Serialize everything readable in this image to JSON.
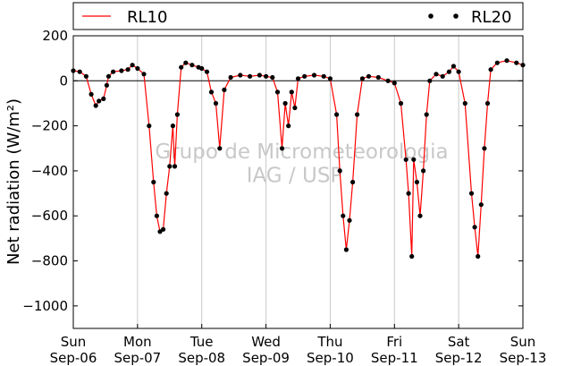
{
  "chart_data": {
    "type": "line",
    "ylabel": "Net radiation (W/m²)",
    "ylim": [
      -1100,
      200
    ],
    "yticks": [
      200,
      0,
      -200,
      -400,
      -600,
      -800,
      -1000
    ],
    "xlim_days": [
      0,
      7
    ],
    "xticks": [
      {
        "day": "Sun",
        "date": "Sep-06"
      },
      {
        "day": "Mon",
        "date": "Sep-07"
      },
      {
        "day": "Tue",
        "date": "Sep-08"
      },
      {
        "day": "Wed",
        "date": "Sep-09"
      },
      {
        "day": "Thu",
        "date": "Sep-10"
      },
      {
        "day": "Fri",
        "date": "Sep-11"
      },
      {
        "day": "Sat",
        "date": "Sep-12"
      },
      {
        "day": "Sun",
        "date": "Sep-13"
      }
    ],
    "grid": "vertical",
    "legend_position": "top",
    "watermark": [
      "Grupo de Micrometeorologia",
      "IAG / USP"
    ],
    "series": [
      {
        "name": "RL10",
        "style": "line",
        "color": "#ff0000",
        "points": [
          [
            0.0,
            45
          ],
          [
            0.1,
            40
          ],
          [
            0.2,
            20
          ],
          [
            0.28,
            -60
          ],
          [
            0.35,
            -110
          ],
          [
            0.4,
            -90
          ],
          [
            0.47,
            -80
          ],
          [
            0.52,
            -20
          ],
          [
            0.55,
            20
          ],
          [
            0.62,
            40
          ],
          [
            0.75,
            45
          ],
          [
            0.85,
            50
          ],
          [
            0.92,
            70
          ],
          [
            1.0,
            55
          ],
          [
            1.1,
            30
          ],
          [
            1.18,
            -200
          ],
          [
            1.25,
            -450
          ],
          [
            1.3,
            -600
          ],
          [
            1.35,
            -670
          ],
          [
            1.4,
            -660
          ],
          [
            1.45,
            -500
          ],
          [
            1.5,
            -380
          ],
          [
            1.55,
            -200
          ],
          [
            1.58,
            -380
          ],
          [
            1.62,
            -150
          ],
          [
            1.68,
            60
          ],
          [
            1.75,
            80
          ],
          [
            1.85,
            70
          ],
          [
            1.95,
            60
          ],
          [
            2.0,
            55
          ],
          [
            2.08,
            40
          ],
          [
            2.15,
            -50
          ],
          [
            2.22,
            -100
          ],
          [
            2.28,
            -300
          ],
          [
            2.35,
            -40
          ],
          [
            2.45,
            15
          ],
          [
            2.6,
            25
          ],
          [
            2.75,
            20
          ],
          [
            2.9,
            25
          ],
          [
            3.0,
            20
          ],
          [
            3.1,
            15
          ],
          [
            3.18,
            -50
          ],
          [
            3.25,
            -300
          ],
          [
            3.3,
            -100
          ],
          [
            3.35,
            -200
          ],
          [
            3.4,
            -50
          ],
          [
            3.45,
            -120
          ],
          [
            3.5,
            10
          ],
          [
            3.6,
            20
          ],
          [
            3.75,
            25
          ],
          [
            3.9,
            20
          ],
          [
            4.0,
            10
          ],
          [
            4.1,
            -150
          ],
          [
            4.15,
            -400
          ],
          [
            4.2,
            -600
          ],
          [
            4.25,
            -750
          ],
          [
            4.3,
            -620
          ],
          [
            4.35,
            -450
          ],
          [
            4.42,
            -150
          ],
          [
            4.5,
            10
          ],
          [
            4.6,
            20
          ],
          [
            4.75,
            15
          ],
          [
            4.9,
            0
          ],
          [
            5.0,
            -10
          ],
          [
            5.1,
            -100
          ],
          [
            5.18,
            -350
          ],
          [
            5.22,
            -500
          ],
          [
            5.27,
            -780
          ],
          [
            5.3,
            -350
          ],
          [
            5.35,
            -450
          ],
          [
            5.4,
            -600
          ],
          [
            5.45,
            -400
          ],
          [
            5.5,
            -150
          ],
          [
            5.55,
            0
          ],
          [
            5.65,
            30
          ],
          [
            5.75,
            20
          ],
          [
            5.85,
            40
          ],
          [
            5.92,
            65
          ],
          [
            6.0,
            40
          ],
          [
            6.1,
            -100
          ],
          [
            6.2,
            -500
          ],
          [
            6.25,
            -650
          ],
          [
            6.3,
            -780
          ],
          [
            6.35,
            -550
          ],
          [
            6.4,
            -300
          ],
          [
            6.45,
            -100
          ],
          [
            6.5,
            50
          ],
          [
            6.6,
            80
          ],
          [
            6.75,
            90
          ],
          [
            6.9,
            80
          ],
          [
            7.0,
            70
          ]
        ]
      },
      {
        "name": "RL20",
        "style": "markers",
        "color": "#000000",
        "points": [
          [
            0.0,
            45
          ],
          [
            0.1,
            40
          ],
          [
            0.2,
            20
          ],
          [
            0.28,
            -60
          ],
          [
            0.35,
            -110
          ],
          [
            0.4,
            -90
          ],
          [
            0.47,
            -80
          ],
          [
            0.52,
            -20
          ],
          [
            0.55,
            20
          ],
          [
            0.62,
            40
          ],
          [
            0.75,
            45
          ],
          [
            0.85,
            50
          ],
          [
            0.92,
            70
          ],
          [
            1.0,
            55
          ],
          [
            1.1,
            30
          ],
          [
            1.18,
            -200
          ],
          [
            1.25,
            -450
          ],
          [
            1.3,
            -600
          ],
          [
            1.35,
            -670
          ],
          [
            1.4,
            -660
          ],
          [
            1.45,
            -500
          ],
          [
            1.5,
            -380
          ],
          [
            1.55,
            -200
          ],
          [
            1.58,
            -380
          ],
          [
            1.62,
            -150
          ],
          [
            1.68,
            60
          ],
          [
            1.75,
            80
          ],
          [
            1.85,
            70
          ],
          [
            1.95,
            60
          ],
          [
            2.0,
            55
          ],
          [
            2.08,
            40
          ],
          [
            2.15,
            -50
          ],
          [
            2.22,
            -100
          ],
          [
            2.28,
            -300
          ],
          [
            2.35,
            -40
          ],
          [
            2.45,
            15
          ],
          [
            2.6,
            25
          ],
          [
            2.75,
            20
          ],
          [
            2.9,
            25
          ],
          [
            3.0,
            20
          ],
          [
            3.1,
            15
          ],
          [
            3.18,
            -50
          ],
          [
            3.25,
            -300
          ],
          [
            3.3,
            -100
          ],
          [
            3.35,
            -200
          ],
          [
            3.4,
            -50
          ],
          [
            3.45,
            -120
          ],
          [
            3.5,
            10
          ],
          [
            3.6,
            20
          ],
          [
            3.75,
            25
          ],
          [
            3.9,
            20
          ],
          [
            4.0,
            10
          ],
          [
            4.1,
            -150
          ],
          [
            4.15,
            -400
          ],
          [
            4.2,
            -600
          ],
          [
            4.25,
            -750
          ],
          [
            4.3,
            -620
          ],
          [
            4.35,
            -450
          ],
          [
            4.42,
            -150
          ],
          [
            4.5,
            10
          ],
          [
            4.6,
            20
          ],
          [
            4.75,
            15
          ],
          [
            4.9,
            0
          ],
          [
            5.0,
            -10
          ],
          [
            5.1,
            -100
          ],
          [
            5.18,
            -350
          ],
          [
            5.22,
            -500
          ],
          [
            5.27,
            -780
          ],
          [
            5.3,
            -350
          ],
          [
            5.35,
            -450
          ],
          [
            5.4,
            -600
          ],
          [
            5.45,
            -400
          ],
          [
            5.5,
            -150
          ],
          [
            5.55,
            0
          ],
          [
            5.65,
            30
          ],
          [
            5.75,
            20
          ],
          [
            5.85,
            40
          ],
          [
            5.92,
            65
          ],
          [
            6.0,
            40
          ],
          [
            6.1,
            -100
          ],
          [
            6.2,
            -500
          ],
          [
            6.25,
            -650
          ],
          [
            6.3,
            -780
          ],
          [
            6.35,
            -550
          ],
          [
            6.4,
            -300
          ],
          [
            6.45,
            -100
          ],
          [
            6.5,
            50
          ],
          [
            6.6,
            80
          ],
          [
            6.75,
            90
          ],
          [
            6.9,
            80
          ],
          [
            7.0,
            70
          ]
        ]
      }
    ]
  }
}
